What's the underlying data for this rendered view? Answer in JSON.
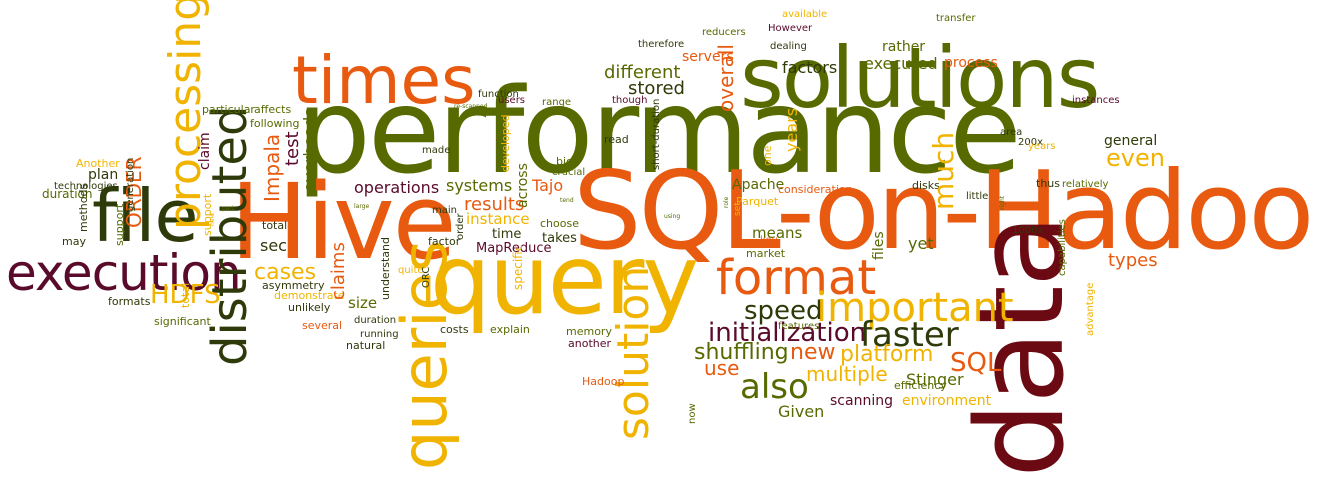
{
  "palette": {
    "dark_red": "#6b0a12",
    "olive": "#566a00",
    "dark_olive": "#2f3a0a",
    "orange": "#e85a10",
    "yellow": "#f0b400",
    "burgundy": "#5a0a2a"
  },
  "words": [
    "performance",
    "SQL-on-Hadoop",
    "data",
    "Hive",
    "query",
    "solutions",
    "file",
    "times",
    "execution",
    "queries",
    "distributed",
    "processing",
    "format",
    "important",
    "solution",
    "faster",
    "initialization",
    "also",
    "speed",
    "shuffling",
    "SQL",
    "platform",
    "multiple",
    "new",
    "use",
    "Stinger",
    "Given",
    "scanning",
    "environment",
    "efficiency",
    "Hadoop",
    "cases",
    "sec",
    "results",
    "operations",
    "systems",
    "time",
    "Tajo",
    "MapReduce",
    "instance",
    "choose",
    "takes",
    "crucial",
    "big",
    "across",
    "read",
    "means",
    "yet",
    "key",
    "market",
    "files",
    "Apache",
    "Parquet",
    "consideration",
    "features",
    "much",
    "even",
    "general",
    "types",
    "advantage",
    "capabilities",
    "thus",
    "relatively",
    "disks",
    "little",
    "1000x",
    "200x",
    "area",
    "instances",
    "ORDER",
    "HDFS",
    "Impala",
    "test",
    "claim",
    "claims",
    "overheads",
    "asymmetry",
    "unlikely",
    "size",
    "understand",
    "explain",
    "costs",
    "memory",
    "another",
    "several",
    "running",
    "duration",
    "natural",
    "ORC",
    "main",
    "order",
    "factor",
    "stored",
    "different",
    "overall",
    "factors",
    "executed",
    "process",
    "rather",
    "transfer",
    "reducers",
    "However",
    "dealing",
    "available",
    "servers",
    "therefore",
    "though",
    "function",
    "range",
    "users",
    "supports",
    "re-scanned",
    "developed",
    "made",
    "particular",
    "affects",
    "following",
    "Another",
    "plan",
    "technologies",
    "Solution",
    "may",
    "formats",
    "significant",
    "HDFS",
    "generation",
    "methods",
    "support",
    "total",
    "demonstrate",
    "quite",
    "specific",
    "now",
    "years",
    "short-duration",
    "one",
    "set",
    "part",
    "large",
    "held",
    "tend",
    "using",
    "right",
    "role",
    "need",
    "consequently",
    "favorable"
  ]
}
